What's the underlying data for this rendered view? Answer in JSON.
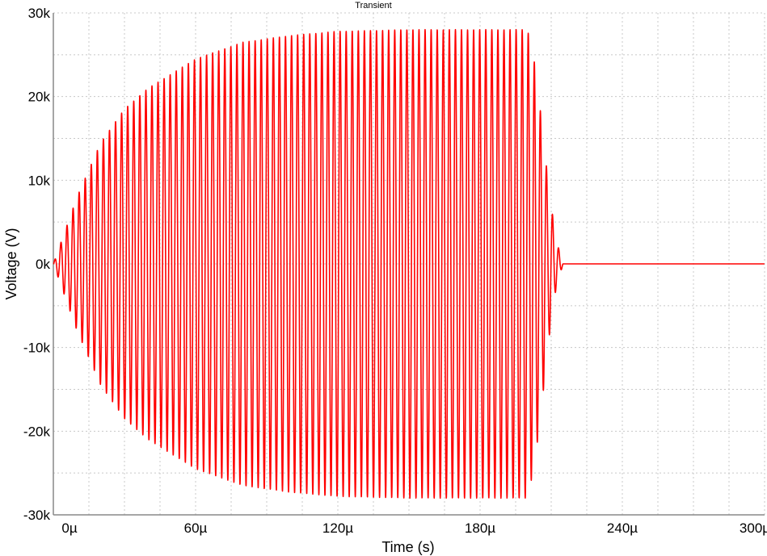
{
  "chart_data": {
    "type": "line",
    "title": "Transient",
    "xlabel": "Time (s)",
    "ylabel": "Voltage (V)",
    "xlim": [
      0,
      300
    ],
    "ylim": [
      -30000,
      30000
    ],
    "x_unit": "µs",
    "x_ticks": [
      0,
      60,
      120,
      180,
      240,
      300
    ],
    "x_tick_labels": [
      "0µ",
      "60µ",
      "120µ",
      "180µ",
      "240µ",
      "300µ"
    ],
    "y_ticks": [
      30000,
      20000,
      10000,
      0,
      -10000,
      -20000,
      -30000
    ],
    "y_tick_labels": [
      "30k",
      "20k",
      "10k",
      "0k",
      "-10k",
      "-20k",
      "-30k"
    ],
    "x_grid_step": 15,
    "y_grid_step": 5000,
    "grid": true,
    "series_color": "#ff0000",
    "series": [
      {
        "oscillation_period": 2.56,
        "envelope": [
          [
            0,
            0
          ],
          [
            5,
            4000
          ],
          [
            10,
            8000
          ],
          [
            20,
            14500
          ],
          [
            30,
            18500
          ],
          [
            40,
            21000
          ],
          [
            60,
            24500
          ],
          [
            80,
            26500
          ],
          [
            100,
            27300
          ],
          [
            120,
            27800
          ],
          [
            150,
            28000
          ],
          [
            200,
            28000
          ],
          [
            203,
            24000
          ],
          [
            206,
            17000
          ],
          [
            209,
            9000
          ],
          [
            212,
            3000
          ],
          [
            215,
            0
          ],
          [
            300,
            0
          ]
        ]
      }
    ]
  }
}
